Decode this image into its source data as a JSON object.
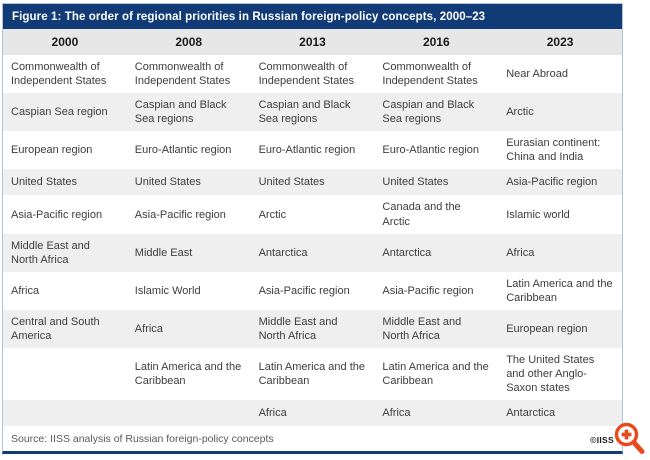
{
  "figure": {
    "source_note": "Source: IISS analysis of Russian foreign-policy concepts",
    "credit": "©IISS"
  },
  "chart_data": {
    "type": "table",
    "title": "Figure 1: The order of regional priorities in Russian foreign-policy concepts, 2000–23",
    "columns": [
      "2000",
      "2008",
      "2013",
      "2016",
      "2023"
    ],
    "rows": [
      [
        "Commonwealth of Independent States",
        "Commonwealth of Independent States",
        "Commonwealth of Independent States",
        "Commonwealth of Independent States",
        "Near Abroad"
      ],
      [
        "Caspian Sea region",
        "Caspian and Black Sea regions",
        "Caspian and Black Sea regions",
        "Caspian and Black Sea regions",
        "Arctic"
      ],
      [
        "European region",
        "Euro-Atlantic region",
        "Euro-Atlantic region",
        "Euro-Atlantic region",
        "Eurasian continent: China and India"
      ],
      [
        "United States",
        "United States",
        "United States",
        "United States",
        "Asia-Pacific region"
      ],
      [
        "Asia-Pacific region",
        "Asia-Pacific region",
        "Arctic",
        "Canada and the Arctic",
        "Islamic world"
      ],
      [
        "Middle East and North Africa",
        "Middle East",
        "Antarctica",
        "Antarctica",
        "Africa"
      ],
      [
        "Africa",
        "Islamic World",
        "Asia-Pacific region",
        "Asia-Pacific region",
        "Latin America and the Caribbean"
      ],
      [
        "Central and South America",
        "Africa",
        "Middle East and North Africa",
        "Middle East and North Africa",
        "European region"
      ],
      [
        "",
        "Latin America and the Caribbean",
        "Latin America and the Caribbean",
        "Latin America and the Caribbean",
        "The United States and other Anglo-Saxon states"
      ],
      [
        "",
        "",
        "Africa",
        "Africa",
        "Antarctica"
      ]
    ],
    "layout": {
      "legend": "none",
      "grid": "zebra-rows",
      "header_position": "top"
    }
  },
  "colors": {
    "title_bar_bg": "#103b76",
    "title_text": "#ffffff",
    "header_bg": "#e7e7e7",
    "row_alt_bg": "#efefef",
    "row_bg": "#ffffff",
    "body_text": "#3d3d3d",
    "muted_text": "#595959",
    "frame_border": "#aec3d6",
    "bottom_border": "#103b76",
    "zoom_icon_orange": "#e8491d"
  },
  "icons": {
    "zoom_icon": "magnifier-plus"
  }
}
